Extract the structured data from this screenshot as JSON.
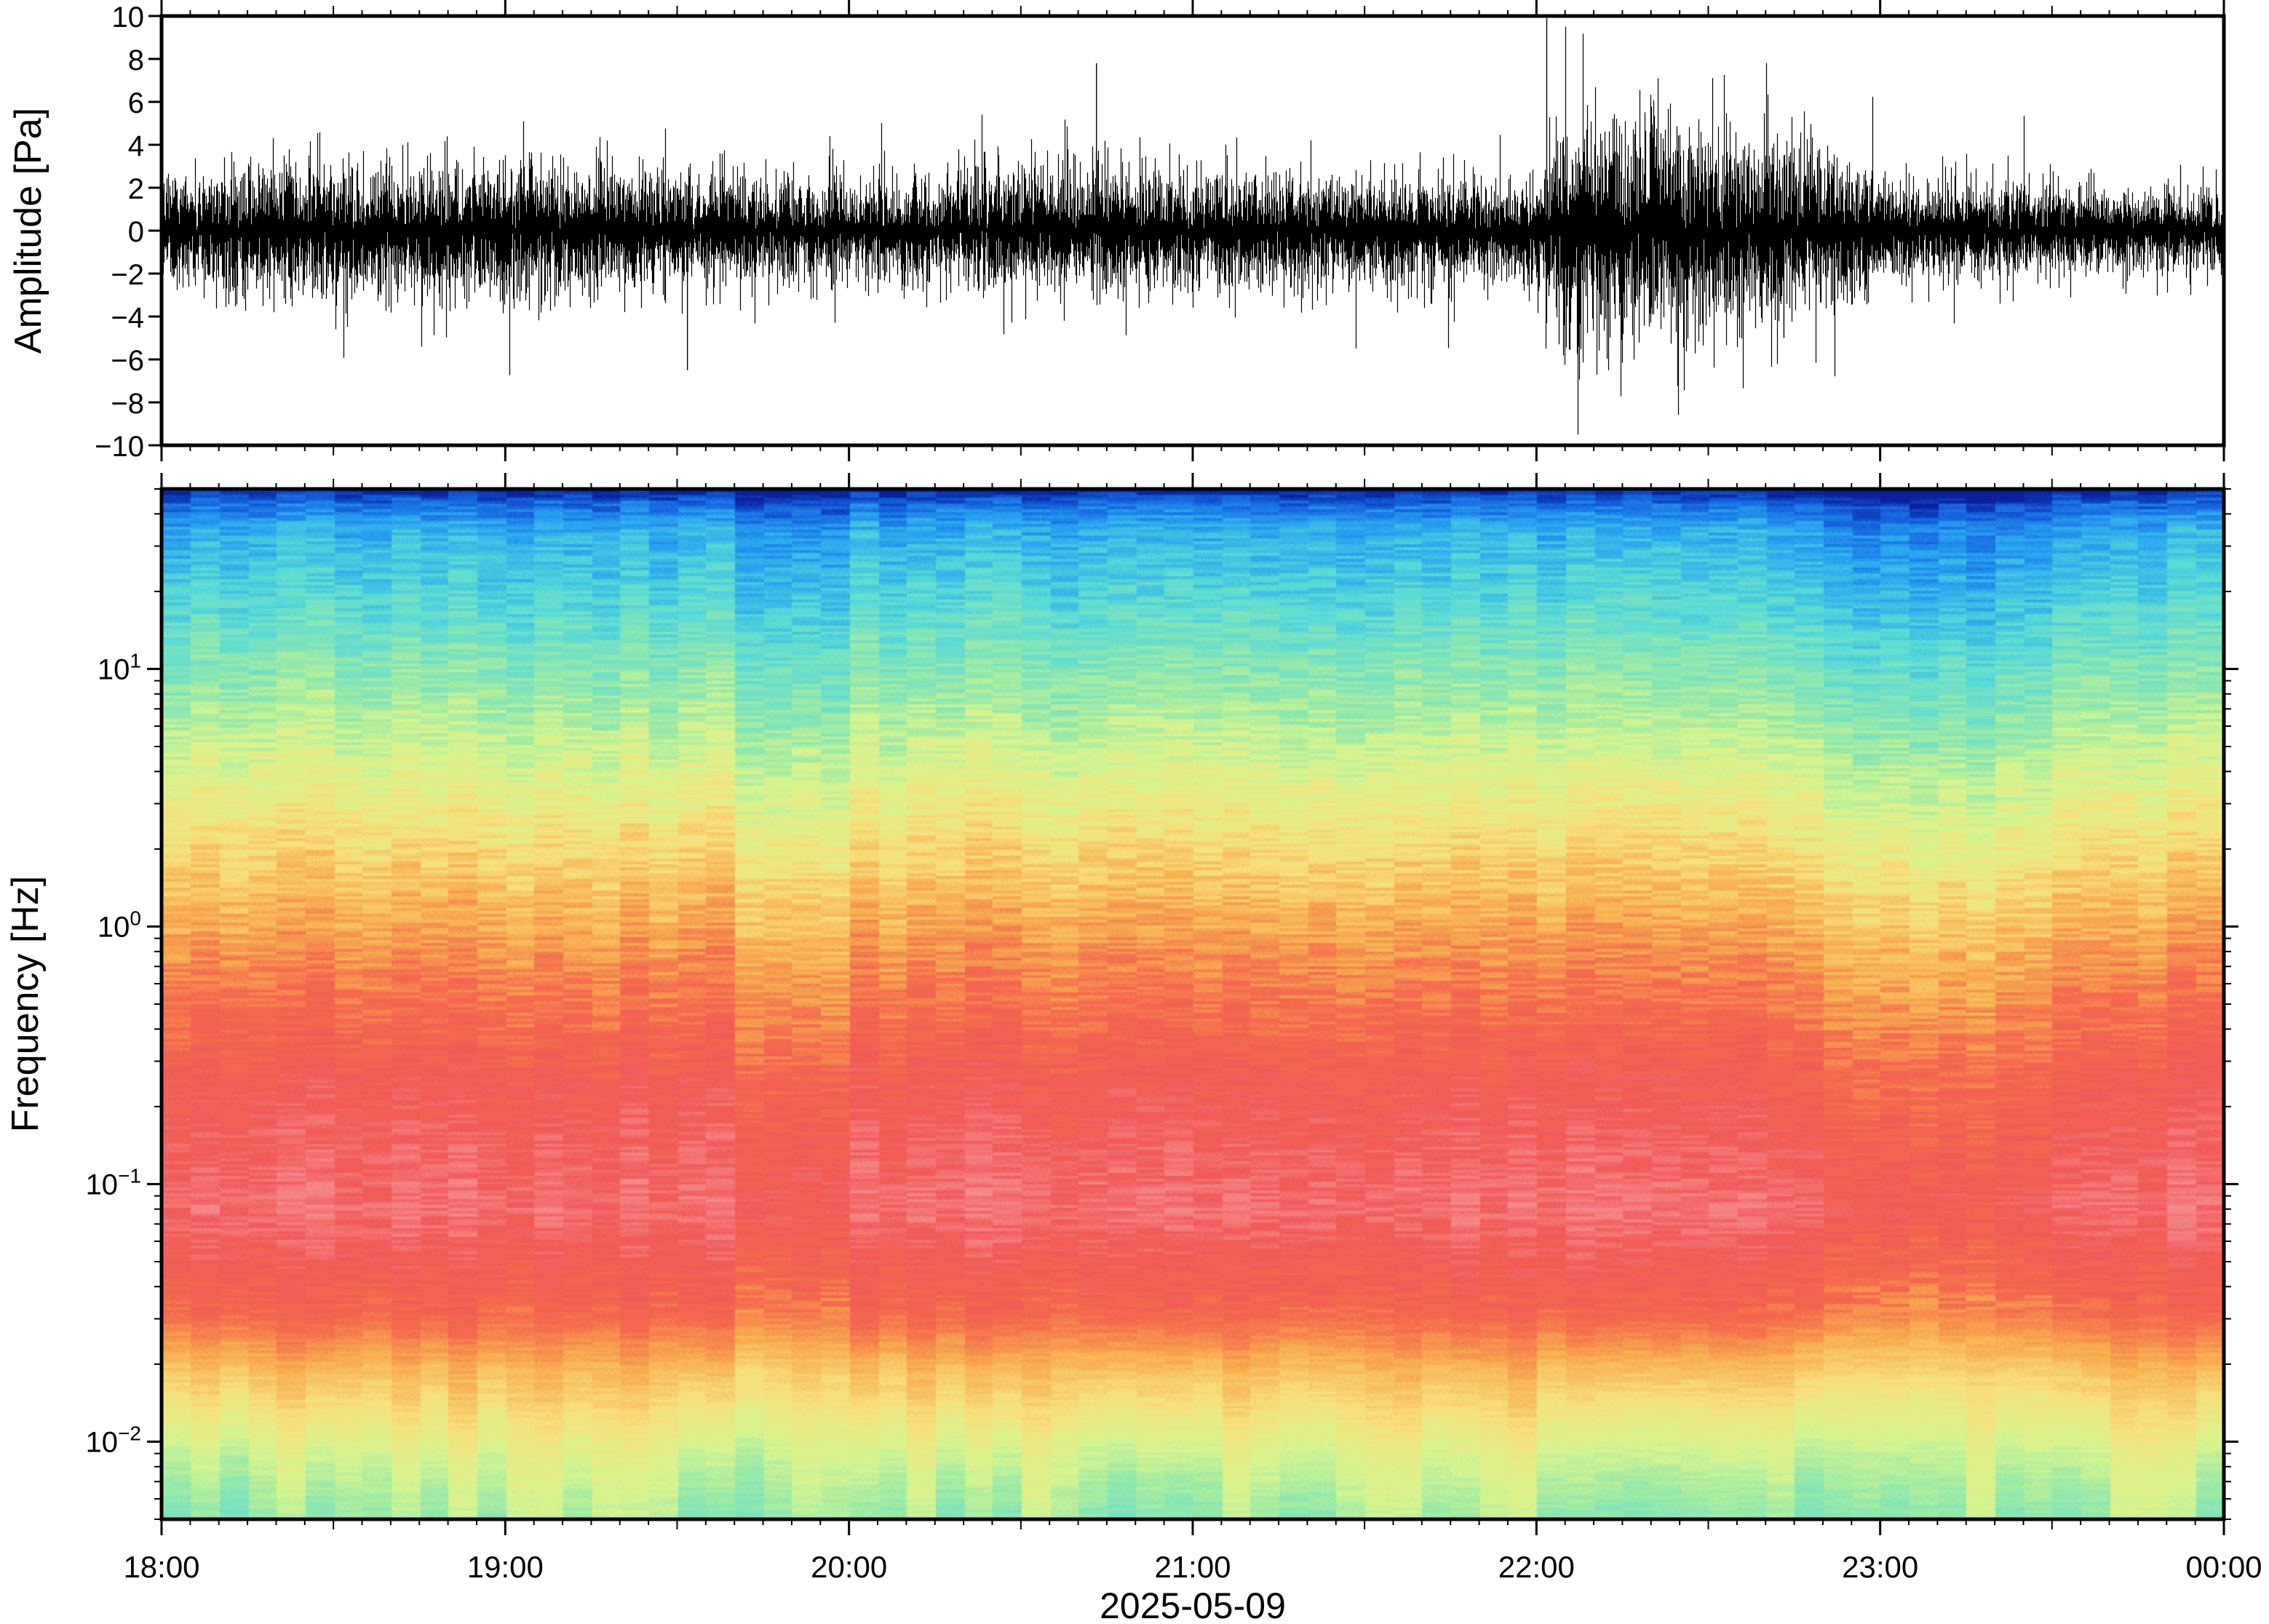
{
  "chart_data": [
    {
      "type": "line",
      "ylabel": "Amplitude [Pa]",
      "xlabel": "2025-05-09",
      "ylim": [
        -10,
        10
      ],
      "yticks": [
        10,
        8,
        6,
        4,
        2,
        0,
        -2,
        -4,
        -6,
        -8,
        -10
      ],
      "ytick_labels": [
        "10",
        "8",
        "6",
        "4",
        "2",
        "0",
        "−2",
        "−4",
        "−6",
        "−8",
        "−10"
      ],
      "xlim_hours": [
        18,
        24
      ],
      "envelope": {
        "description_hours": [
          18.0,
          18.5,
          19.0,
          19.5,
          20.0,
          20.5,
          21.0,
          21.5,
          22.0,
          22.1,
          22.5,
          22.8,
          23.0,
          23.5,
          24.0
        ],
        "typical_amplitude_pa": [
          1.6,
          1.7,
          1.8,
          1.5,
          1.3,
          1.6,
          1.5,
          1.4,
          1.3,
          3.2,
          2.7,
          2.4,
          1.4,
          1.1,
          1.0
        ]
      },
      "spikes": [
        {
          "hour": 19.53,
          "value": -6.5
        },
        {
          "hour": 20.72,
          "value": 7.8
        },
        {
          "hour": 22.03,
          "value": 9.9
        },
        {
          "hour": 22.72,
          "value": -5.0
        }
      ],
      "grid": false
    },
    {
      "type": "heatmap",
      "ylabel": "Frequency [Hz]",
      "xlabel": "2025-05-09",
      "yscale": "log",
      "ylim_hz": [
        0.005,
        50
      ],
      "ytick_labels": [
        {
          "value": 0.01,
          "base": "10",
          "exp": "−2"
        },
        {
          "value": 0.1,
          "base": "10",
          "exp": "−1"
        },
        {
          "value": 1,
          "base": "10",
          "exp": "0"
        },
        {
          "value": 10,
          "base": "10",
          "exp": "1"
        }
      ],
      "xticks": [
        "18:00",
        "19:00",
        "20:00",
        "21:00",
        "22:00",
        "23:00",
        "00:00"
      ],
      "colormap": [
        "#0a1f9c",
        "#1565e0",
        "#2aa7f0",
        "#57d9d8",
        "#8de8b0",
        "#d8f58e",
        "#f7e07a",
        "#f8ad4e",
        "#f46a4e",
        "#f25a5a",
        "#f48a8a"
      ],
      "grid": false
    }
  ]
}
